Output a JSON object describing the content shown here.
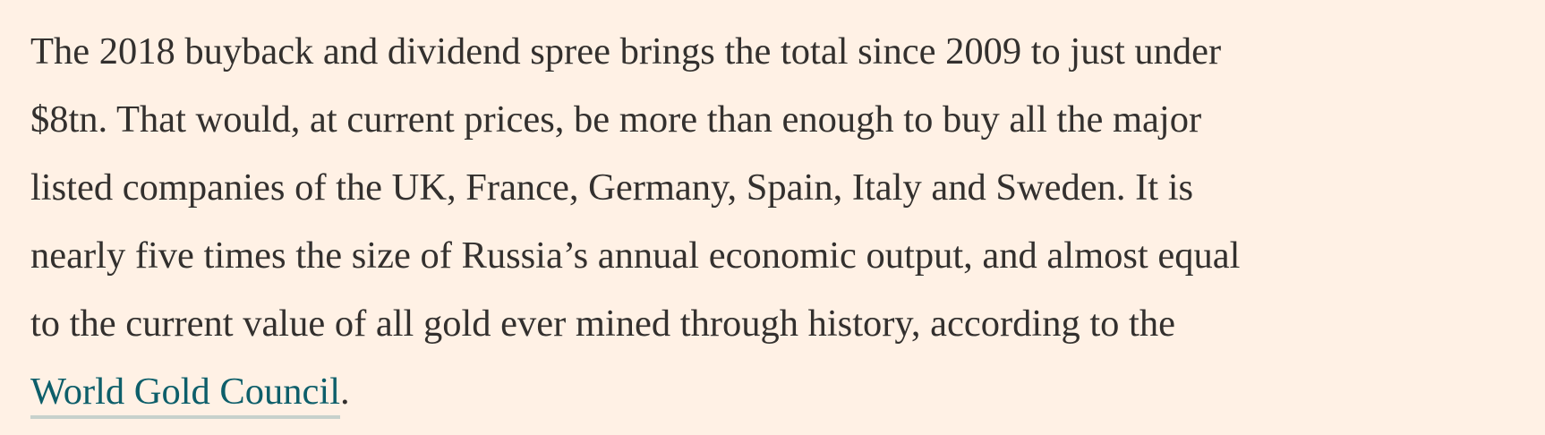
{
  "article": {
    "paragraph": {
      "lines": [
        "The 2018 buyback and dividend spree brings the total since 2009 to just under",
        "$8tn. That would, at current prices, be more than enough to buy all the major",
        "listed companies of the UK, France, Germany, Spain, Italy and Sweden. It is",
        "nearly five times the size of Russia’s annual economic output, and almost equal",
        "to the current value of all gold ever mined through history, according to the"
      ],
      "link_text": "World Gold Council",
      "trailing_text": "."
    }
  },
  "colors": {
    "background": "#fff1e5",
    "text": "#33302e",
    "link": "#0d5e6a",
    "link_underline": "#c7d1cc"
  }
}
